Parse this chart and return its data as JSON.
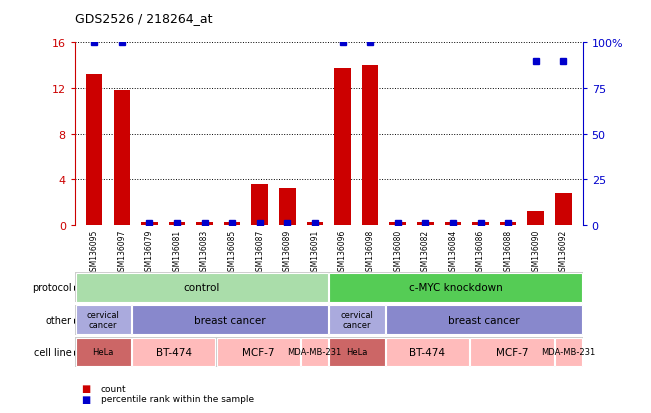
{
  "title": "GDS2526 / 218264_at",
  "samples": [
    "GSM136095",
    "GSM136097",
    "GSM136079",
    "GSM136081",
    "GSM136083",
    "GSM136085",
    "GSM136087",
    "GSM136089",
    "GSM136091",
    "GSM136096",
    "GSM136098",
    "GSM136080",
    "GSM136082",
    "GSM136084",
    "GSM136086",
    "GSM136088",
    "GSM136090",
    "GSM136092"
  ],
  "counts": [
    13.2,
    11.8,
    0.2,
    0.2,
    0.2,
    0.2,
    3.6,
    3.2,
    0.2,
    13.8,
    14.0,
    0.2,
    0.2,
    0.2,
    0.2,
    0.2,
    1.2,
    2.8
  ],
  "percentile_ranks": [
    100,
    100,
    1,
    1,
    1,
    1,
    1,
    1,
    1,
    100,
    100,
    1,
    1,
    1,
    1,
    1,
    90,
    90
  ],
  "ylim_left": [
    0,
    16
  ],
  "ylim_right": [
    0,
    100
  ],
  "yticks_left": [
    0,
    4,
    8,
    12,
    16
  ],
  "yticks_right": [
    0,
    25,
    50,
    75,
    100
  ],
  "bar_color": "#cc0000",
  "dot_color": "#0000cc",
  "chart_bg": "#ffffff",
  "xtick_bg": "#dddddd",
  "protocol_row": {
    "label": "protocol",
    "groups": [
      {
        "name": "control",
        "start": 0,
        "end": 9,
        "color": "#aaddaa"
      },
      {
        "name": "c-MYC knockdown",
        "start": 9,
        "end": 18,
        "color": "#55cc55"
      }
    ]
  },
  "other_row": {
    "label": "other",
    "groups": [
      {
        "name": "cervical\ncancer",
        "start": 0,
        "end": 2,
        "color": "#aaaadd"
      },
      {
        "name": "breast cancer",
        "start": 2,
        "end": 9,
        "color": "#8888cc"
      },
      {
        "name": "cervical\ncancer",
        "start": 9,
        "end": 11,
        "color": "#aaaadd"
      },
      {
        "name": "breast cancer",
        "start": 11,
        "end": 18,
        "color": "#8888cc"
      }
    ]
  },
  "cellline_row": {
    "label": "cell line",
    "groups": [
      {
        "name": "HeLa",
        "start": 0,
        "end": 2,
        "color": "#cc6666"
      },
      {
        "name": "BT-474",
        "start": 2,
        "end": 5,
        "color": "#ffbbbb"
      },
      {
        "name": "MCF-7",
        "start": 5,
        "end": 8,
        "color": "#ffbbbb"
      },
      {
        "name": "MDA-MB-231",
        "start": 8,
        "end": 9,
        "color": "#ffbbbb"
      },
      {
        "name": "HeLa",
        "start": 9,
        "end": 11,
        "color": "#cc6666"
      },
      {
        "name": "BT-474",
        "start": 11,
        "end": 14,
        "color": "#ffbbbb"
      },
      {
        "name": "MCF-7",
        "start": 14,
        "end": 17,
        "color": "#ffbbbb"
      },
      {
        "name": "MDA-MB-231",
        "start": 17,
        "end": 18,
        "color": "#ffbbbb"
      }
    ]
  },
  "legend_items": [
    {
      "label": "count",
      "color": "#cc0000"
    },
    {
      "label": "percentile rank within the sample",
      "color": "#0000cc"
    }
  ],
  "background_color": "#ffffff",
  "label_color_left": "#cc0000",
  "label_color_right": "#0000cc"
}
